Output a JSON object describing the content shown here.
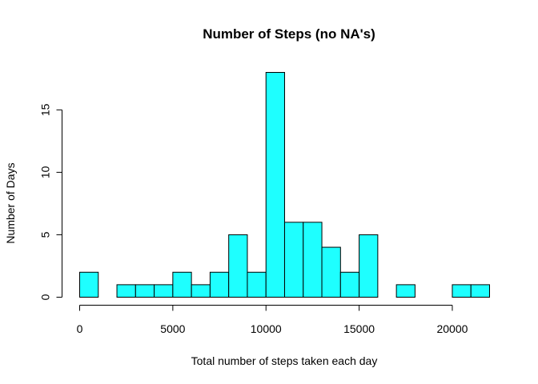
{
  "chart_data": {
    "type": "bar",
    "title": "Number of Steps (no NA's)",
    "xlabel": "Total number of steps taken each day",
    "ylabel": "Number of Days",
    "bin_width": 1000,
    "bin_starts": [
      0,
      1000,
      2000,
      3000,
      4000,
      5000,
      6000,
      7000,
      8000,
      9000,
      10000,
      11000,
      12000,
      13000,
      14000,
      15000,
      16000,
      17000,
      18000,
      19000,
      20000,
      21000
    ],
    "values": [
      2,
      0,
      1,
      1,
      1,
      2,
      1,
      2,
      5,
      2,
      18,
      6,
      6,
      4,
      2,
      5,
      0,
      1,
      0,
      0,
      1,
      1
    ],
    "xlim": [
      0,
      22000
    ],
    "ylim": [
      0,
      18
    ],
    "x_ticks": [
      0,
      5000,
      10000,
      15000,
      20000
    ],
    "y_ticks": [
      0,
      5,
      10,
      15
    ],
    "bar_color": "#1effff",
    "grid": false
  }
}
